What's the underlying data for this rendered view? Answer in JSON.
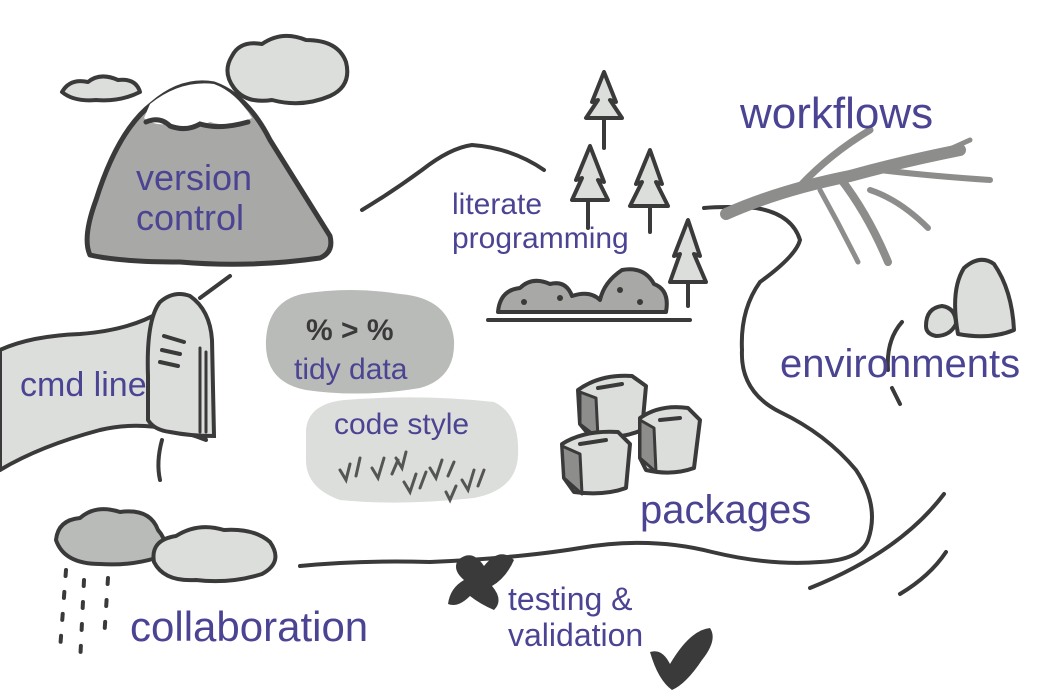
{
  "colors": {
    "label": "#4b4493",
    "ink": "#3a3a3a",
    "mountain": "#a8a8a6",
    "light_fill": "#dcdedb",
    "mid_fill": "#b9bbb8",
    "dark_fill": "#8d8d8b"
  },
  "labels": {
    "version_control": [
      "version",
      "control"
    ],
    "literate_programming": [
      "literate",
      "programming"
    ],
    "workflows": "workflows",
    "cmd_line": "cmd line",
    "tidy_data": "tidy data",
    "code_style": "code style",
    "environments": "environments",
    "packages": "packages",
    "collaboration": "collaboration",
    "testing_validation": [
      "testing &",
      "validation"
    ]
  },
  "symbols": {
    "tidy_glyphs": "% > %"
  },
  "icons": [
    "mountain-icon",
    "cloud-icon",
    "tree-icon",
    "bush-icon",
    "dead-tree-icon",
    "rock-icon",
    "hill-icon",
    "gravestone-icon",
    "rain-cloud-icon",
    "package-box-icon",
    "grass-icon",
    "x-mark-icon",
    "check-mark-icon",
    "river-icon"
  ]
}
